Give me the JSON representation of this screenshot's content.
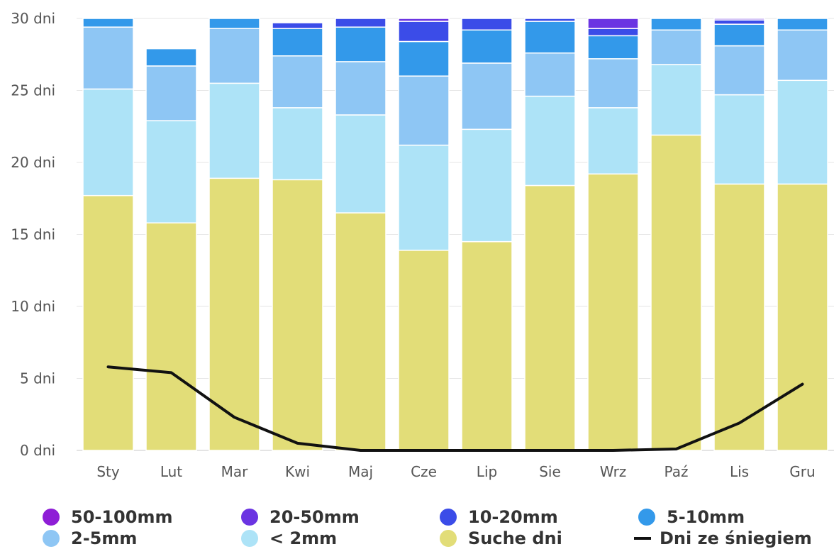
{
  "chart_data": {
    "type": "bar",
    "stacked": true,
    "categories": [
      "Sty",
      "Lut",
      "Mar",
      "Kwi",
      "Maj",
      "Cze",
      "Lip",
      "Sie",
      "Wrz",
      "Paź",
      "Lis",
      "Gru"
    ],
    "yAxis": {
      "min": 0,
      "max": 30,
      "ticks": [
        0,
        5,
        10,
        15,
        20,
        25,
        30
      ],
      "tickLabels": [
        "0 dni",
        "5 dni",
        "10 dni",
        "15 dni",
        "20 dni",
        "25 dni",
        "30 dni"
      ]
    },
    "grid": true,
    "legend_position": "bottom",
    "series": [
      {
        "name": "Suche dni",
        "color": "#e2dd78",
        "values": [
          17.7,
          15.8,
          18.9,
          18.8,
          16.5,
          13.9,
          14.5,
          18.4,
          19.2,
          21.9,
          18.5,
          18.5
        ]
      },
      {
        "name": "< 2mm",
        "color": "#ade3f7",
        "values": [
          7.4,
          7.1,
          6.6,
          5.0,
          6.8,
          7.3,
          7.8,
          6.2,
          4.6,
          4.9,
          6.2,
          7.2
        ]
      },
      {
        "name": "2-5mm",
        "color": "#8ec6f4",
        "values": [
          4.3,
          3.8,
          3.8,
          3.6,
          3.7,
          4.8,
          4.6,
          3.0,
          3.4,
          2.4,
          3.4,
          3.5
        ]
      },
      {
        "name": "5-10mm",
        "color": "#3399ea",
        "values": [
          0.7,
          1.2,
          0.8,
          1.9,
          2.4,
          2.4,
          2.3,
          2.2,
          1.6,
          0.9,
          1.5,
          0.8
        ]
      },
      {
        "name": "10-20mm",
        "color": "#3b4ce8",
        "values": [
          0,
          0,
          0,
          0.4,
          0.6,
          1.4,
          0.8,
          0.2,
          0.5,
          0,
          0.3,
          0
        ]
      },
      {
        "name": "20-50mm",
        "color": "#6b34e2",
        "values": [
          0,
          0,
          0,
          0,
          0,
          0.2,
          0,
          0,
          0.7,
          0,
          0.2,
          0
        ]
      },
      {
        "name": "50-100mm",
        "color": "#8e1ed6",
        "values": [
          0,
          0,
          0,
          0,
          0,
          0,
          0,
          0,
          0,
          0,
          0,
          0
        ]
      }
    ],
    "line_series": {
      "name": "Dni ze śniegiem",
      "color": "#111111",
      "values": [
        5.8,
        5.4,
        2.3,
        0.5,
        0,
        0,
        0,
        0,
        0,
        0.1,
        1.9,
        4.6
      ]
    }
  },
  "legend": [
    {
      "label": "50-100mm",
      "color": "#8e1ed6",
      "shape": "circle"
    },
    {
      "label": "20-50mm",
      "color": "#6b34e2",
      "shape": "circle"
    },
    {
      "label": "10-20mm",
      "color": "#3b4ce8",
      "shape": "circle"
    },
    {
      "label": "5-10mm",
      "color": "#3399ea",
      "shape": "circle"
    },
    {
      "label": "2-5mm",
      "color": "#8ec6f4",
      "shape": "circle"
    },
    {
      "label": "< 2mm",
      "color": "#ade3f7",
      "shape": "circle"
    },
    {
      "label": "Suche dni",
      "color": "#e2dd78",
      "shape": "circle"
    },
    {
      "label": "Dni ze śniegiem",
      "color": "#111111",
      "shape": "line"
    }
  ]
}
